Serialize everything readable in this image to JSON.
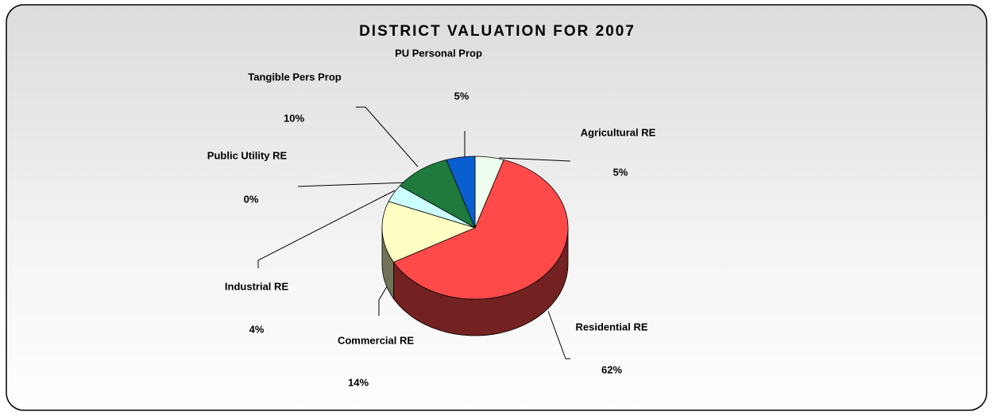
{
  "chart_data": {
    "type": "pie",
    "title": "DISTRICT VALUATION FOR 2007",
    "categories": [
      "Agricultural RE",
      "Residential RE",
      "Commercial RE",
      "Industrial RE",
      "Public Utility RE",
      "Tangible Pers Prop",
      "PU Personal Prop"
    ],
    "values": [
      5,
      62,
      14,
      4,
      0,
      10,
      5
    ],
    "value_labels": [
      "5%",
      "62%",
      "14%",
      "4%",
      "0%",
      "10%",
      "5%"
    ],
    "colors": [
      "#eefdee",
      "#ff4a4a",
      "#ffffc4",
      "#ccffff",
      "#9999ff",
      "#1f7a3e",
      "#0a5fd0"
    ]
  }
}
